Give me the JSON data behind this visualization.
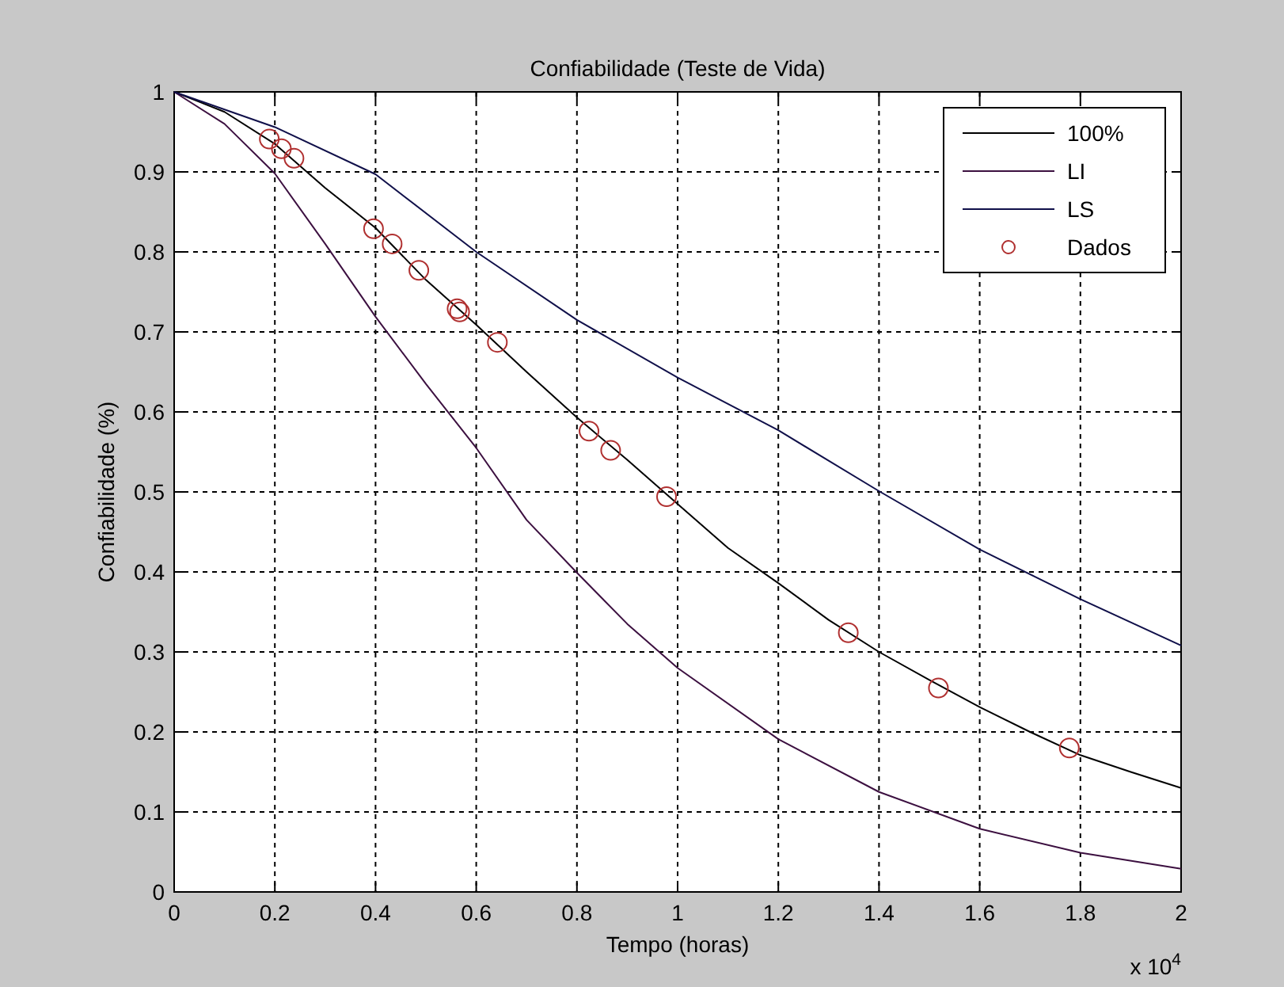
{
  "chart_data": {
    "type": "line",
    "title": "Confiabilidade (Teste de Vida)",
    "xlabel": "Tempo (horas)",
    "ylabel": "Confiabilidade (%)",
    "annotations": [
      "x 10$^{4}$"
    ],
    "xlim": [
      0,
      2
    ],
    "xticks": [
      0,
      0.2,
      0.4,
      0.6,
      0.8,
      1,
      1.2,
      1.4,
      1.6,
      1.8,
      2
    ],
    "ylim": [
      0,
      1
    ],
    "yticks": [
      0,
      0.1,
      0.2,
      0.3,
      0.4,
      0.5,
      0.6,
      0.7,
      0.8,
      0.9,
      1
    ],
    "grid": true,
    "legend": "top right",
    "line_style": "solid",
    "series": [
      {
        "name": "100%",
        "marker": "none",
        "color": "#000000",
        "x": [
          0,
          0.1,
          0.2,
          0.3,
          0.4,
          0.5,
          0.6,
          0.7,
          0.8,
          0.9,
          1,
          1.1,
          1.2,
          1.3,
          1.4,
          1.5,
          1.6,
          1.7,
          1.8,
          1.9,
          2
        ],
        "values": [
          1,
          0.975,
          0.935,
          0.88,
          0.83,
          0.765,
          0.709,
          0.65,
          0.593,
          0.54,
          0.485,
          0.43,
          0.386,
          0.34,
          0.3,
          0.265,
          0.231,
          0.2,
          0.171,
          0.15,
          0.13
        ]
      },
      {
        "name": "LI",
        "marker": "none",
        "color": "#3c1040",
        "x": [
          0,
          0.1,
          0.2,
          0.3,
          0.4,
          0.5,
          0.6,
          0.7,
          0.8,
          0.9,
          1,
          1.2,
          1.4,
          1.6,
          1.8,
          2
        ],
        "values": [
          1,
          0.96,
          0.898,
          0.81,
          0.719,
          0.635,
          0.555,
          0.465,
          0.399,
          0.335,
          0.28,
          0.191,
          0.125,
          0.079,
          0.049,
          0.029
        ]
      },
      {
        "name": "LS",
        "marker": "none",
        "color": "#10104a",
        "x": [
          0,
          0.2,
          0.4,
          0.6,
          0.8,
          1,
          1.2,
          1.4,
          1.6,
          1.8,
          2
        ],
        "values": [
          1,
          0.956,
          0.897,
          0.8,
          0.715,
          0.643,
          0.577,
          0.501,
          0.428,
          0.366,
          0.308
        ]
      },
      {
        "name": "Dados",
        "type": "scatter",
        "marker": "circle",
        "color": "#b03030",
        "x": [
          0.189,
          0.213,
          0.238,
          0.396,
          0.433,
          0.486,
          0.562,
          0.567,
          0.642,
          0.824,
          0.867,
          0.978,
          1.339,
          1.518,
          1.778
        ],
        "values": [
          0.941,
          0.929,
          0.917,
          0.829,
          0.81,
          0.777,
          0.729,
          0.725,
          0.687,
          0.576,
          0.552,
          0.494,
          0.324,
          0.255,
          0.18
        ]
      }
    ]
  }
}
